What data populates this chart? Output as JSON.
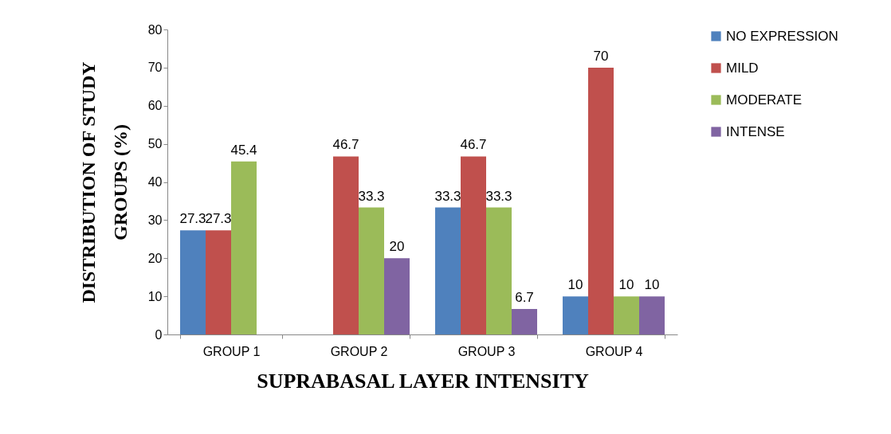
{
  "chart_data": {
    "type": "bar",
    "xlabel": "SUPRABASAL LAYER INTENSITY",
    "ylabel": "DISTRIBUTION OF STUDY GROUPS (%)",
    "categories": [
      "GROUP 1",
      "GROUP 2",
      "GROUP 3",
      "GROUP 4"
    ],
    "series": [
      {
        "name": "NO EXPRESSION",
        "color": "#4f81bd",
        "values": [
          27.3,
          null,
          33.3,
          10
        ]
      },
      {
        "name": "MILD",
        "color": "#c0504d",
        "values": [
          27.3,
          46.7,
          46.7,
          70
        ]
      },
      {
        "name": "MODERATE",
        "color": "#9bbb59",
        "values": [
          45.4,
          33.3,
          33.3,
          10
        ]
      },
      {
        "name": "INTENSE",
        "color": "#8064a2",
        "values": [
          null,
          20,
          6.7,
          10
        ]
      }
    ],
    "ylim": [
      0,
      80
    ],
    "yticks": [
      0,
      10,
      20,
      30,
      40,
      50,
      60,
      70,
      80
    ],
    "grid": false,
    "legend": "right",
    "data_labels": true
  }
}
